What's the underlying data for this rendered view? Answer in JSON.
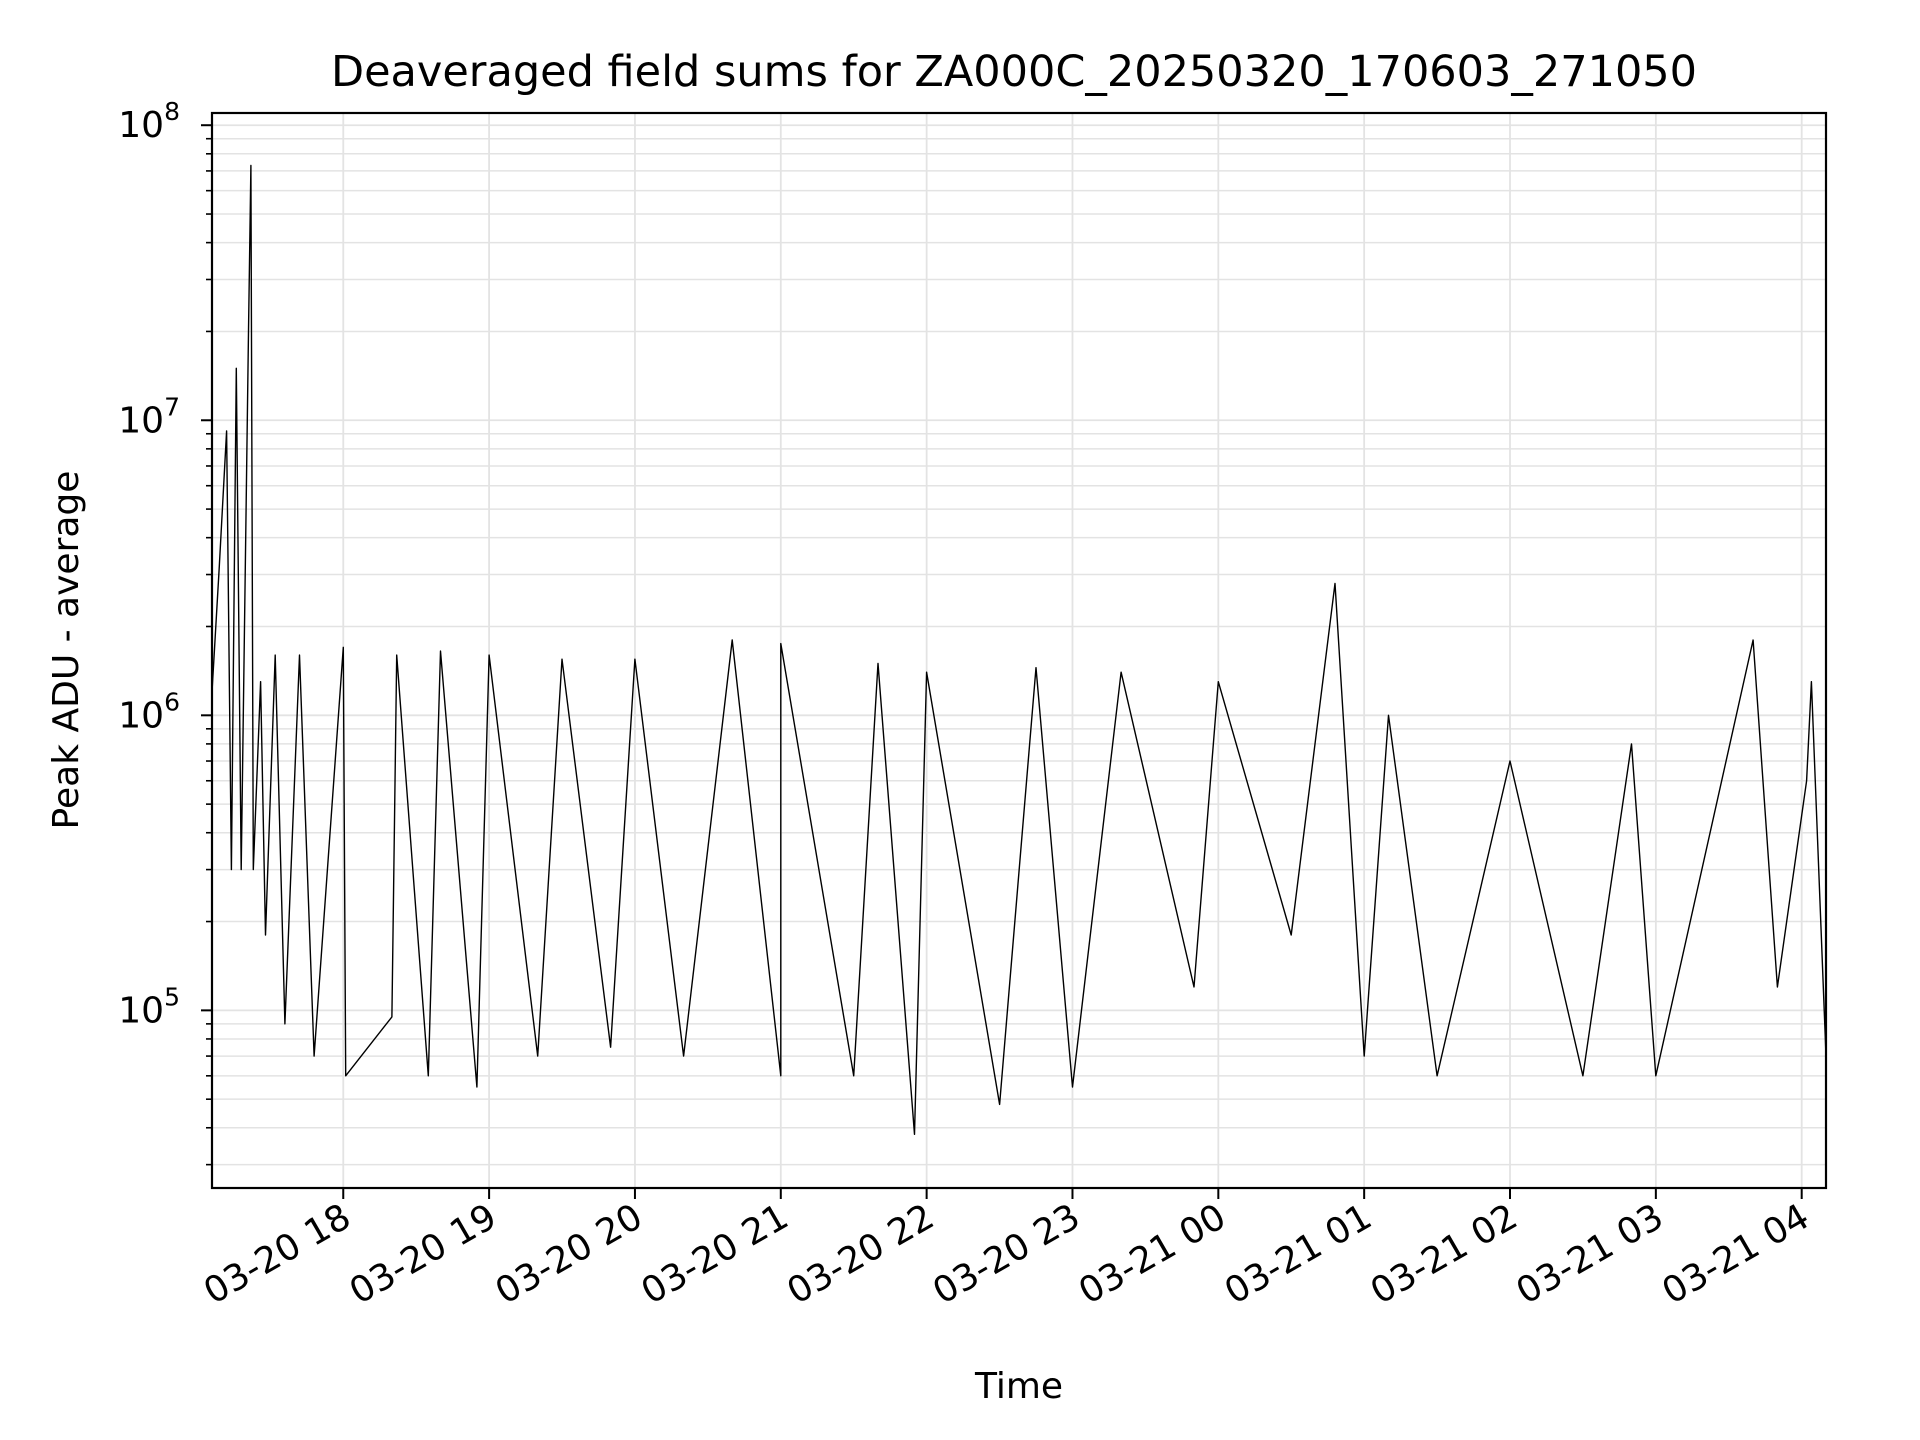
{
  "chart_data": {
    "type": "line",
    "title": "Deaveraged field sums for ZA000C_20250320_170603_271050",
    "xlabel": "Time",
    "ylabel": "Peak ADU - average",
    "yscale": "log",
    "ylim": [
      25000,
      110000000
    ],
    "xlim": [
      "03-20 17:06",
      "03-21 04:10"
    ],
    "grid": true,
    "line_color": "#000000",
    "grid_color": "#e3e3e3",
    "x_ticks": [
      {
        "label": "03-20 18",
        "value": "03-20 18:00"
      },
      {
        "label": "03-20 19",
        "value": "03-20 19:00"
      },
      {
        "label": "03-20 20",
        "value": "03-20 20:00"
      },
      {
        "label": "03-20 21",
        "value": "03-20 21:00"
      },
      {
        "label": "03-20 22",
        "value": "03-20 22:00"
      },
      {
        "label": "03-20 23",
        "value": "03-20 23:00"
      },
      {
        "label": "03-21 00",
        "value": "03-21 00:00"
      },
      {
        "label": "03-21 01",
        "value": "03-21 01:00"
      },
      {
        "label": "03-21 02",
        "value": "03-21 02:00"
      },
      {
        "label": "03-21 03",
        "value": "03-21 03:00"
      },
      {
        "label": "03-21 04",
        "value": "03-21 04:00"
      }
    ],
    "y_ticks": [
      {
        "base": "10",
        "exp": "5",
        "value": 100000
      },
      {
        "base": "10",
        "exp": "6",
        "value": 1000000
      },
      {
        "base": "10",
        "exp": "7",
        "value": 10000000
      },
      {
        "base": "10",
        "exp": "8",
        "value": 100000000
      }
    ],
    "series": [
      {
        "points": [
          [
            "03-20 17:06",
            1200000
          ],
          [
            "03-20 17:09",
            3200000
          ],
          [
            "03-20 17:12",
            9200000
          ],
          [
            "03-20 17:14",
            300000
          ],
          [
            "03-20 17:16",
            15000000
          ],
          [
            "03-20 17:18",
            300000
          ],
          [
            "03-20 17:21",
            20000000
          ],
          [
            "03-20 17:22",
            73000000
          ],
          [
            "03-20 17:23",
            300000
          ],
          [
            "03-20 17:26",
            1300000
          ],
          [
            "03-20 17:28",
            180000
          ],
          [
            "03-20 17:32",
            1600000
          ],
          [
            "03-20 17:36",
            90000
          ],
          [
            "03-20 17:42",
            1600000
          ],
          [
            "03-20 17:48",
            70000
          ],
          [
            "03-20 18:00",
            1700000
          ],
          [
            "03-20 18:01",
            60000
          ],
          [
            "03-20 18:20",
            95000
          ],
          [
            "03-20 18:22",
            1600000
          ],
          [
            "03-20 18:35",
            60000
          ],
          [
            "03-20 18:40",
            1650000
          ],
          [
            "03-20 18:55",
            55000
          ],
          [
            "03-20 19:00",
            1600000
          ],
          [
            "03-20 19:20",
            70000
          ],
          [
            "03-20 19:30",
            1550000
          ],
          [
            "03-20 19:50",
            75000
          ],
          [
            "03-20 20:00",
            1550000
          ],
          [
            "03-20 20:20",
            70000
          ],
          [
            "03-20 20:40",
            1800000
          ],
          [
            "03-20 21:00",
            60000
          ],
          [
            "03-20 21:00",
            1750000
          ],
          [
            "03-20 21:30",
            60000
          ],
          [
            "03-20 21:40",
            1500000
          ],
          [
            "03-20 21:55",
            38000
          ],
          [
            "03-20 22:00",
            1400000
          ],
          [
            "03-20 22:30",
            48000
          ],
          [
            "03-20 22:45",
            1450000
          ],
          [
            "03-20 23:00",
            55000
          ],
          [
            "03-20 23:20",
            1400000
          ],
          [
            "03-20 23:50",
            120000
          ],
          [
            "03-21 00:00",
            1300000
          ],
          [
            "03-21 00:30",
            180000
          ],
          [
            "03-21 00:48",
            2800000
          ],
          [
            "03-21 01:00",
            70000
          ],
          [
            "03-21 01:10",
            1000000
          ],
          [
            "03-21 01:30",
            60000
          ],
          [
            "03-21 02:00",
            700000
          ],
          [
            "03-21 02:30",
            60000
          ],
          [
            "03-21 02:50",
            800000
          ],
          [
            "03-21 03:00",
            60000
          ],
          [
            "03-21 03:40",
            1800000
          ],
          [
            "03-21 03:50",
            120000
          ],
          [
            "03-21 04:02",
            600000
          ],
          [
            "03-21 04:04",
            1300000
          ],
          [
            "03-21 04:10",
            70000
          ]
        ]
      }
    ]
  }
}
